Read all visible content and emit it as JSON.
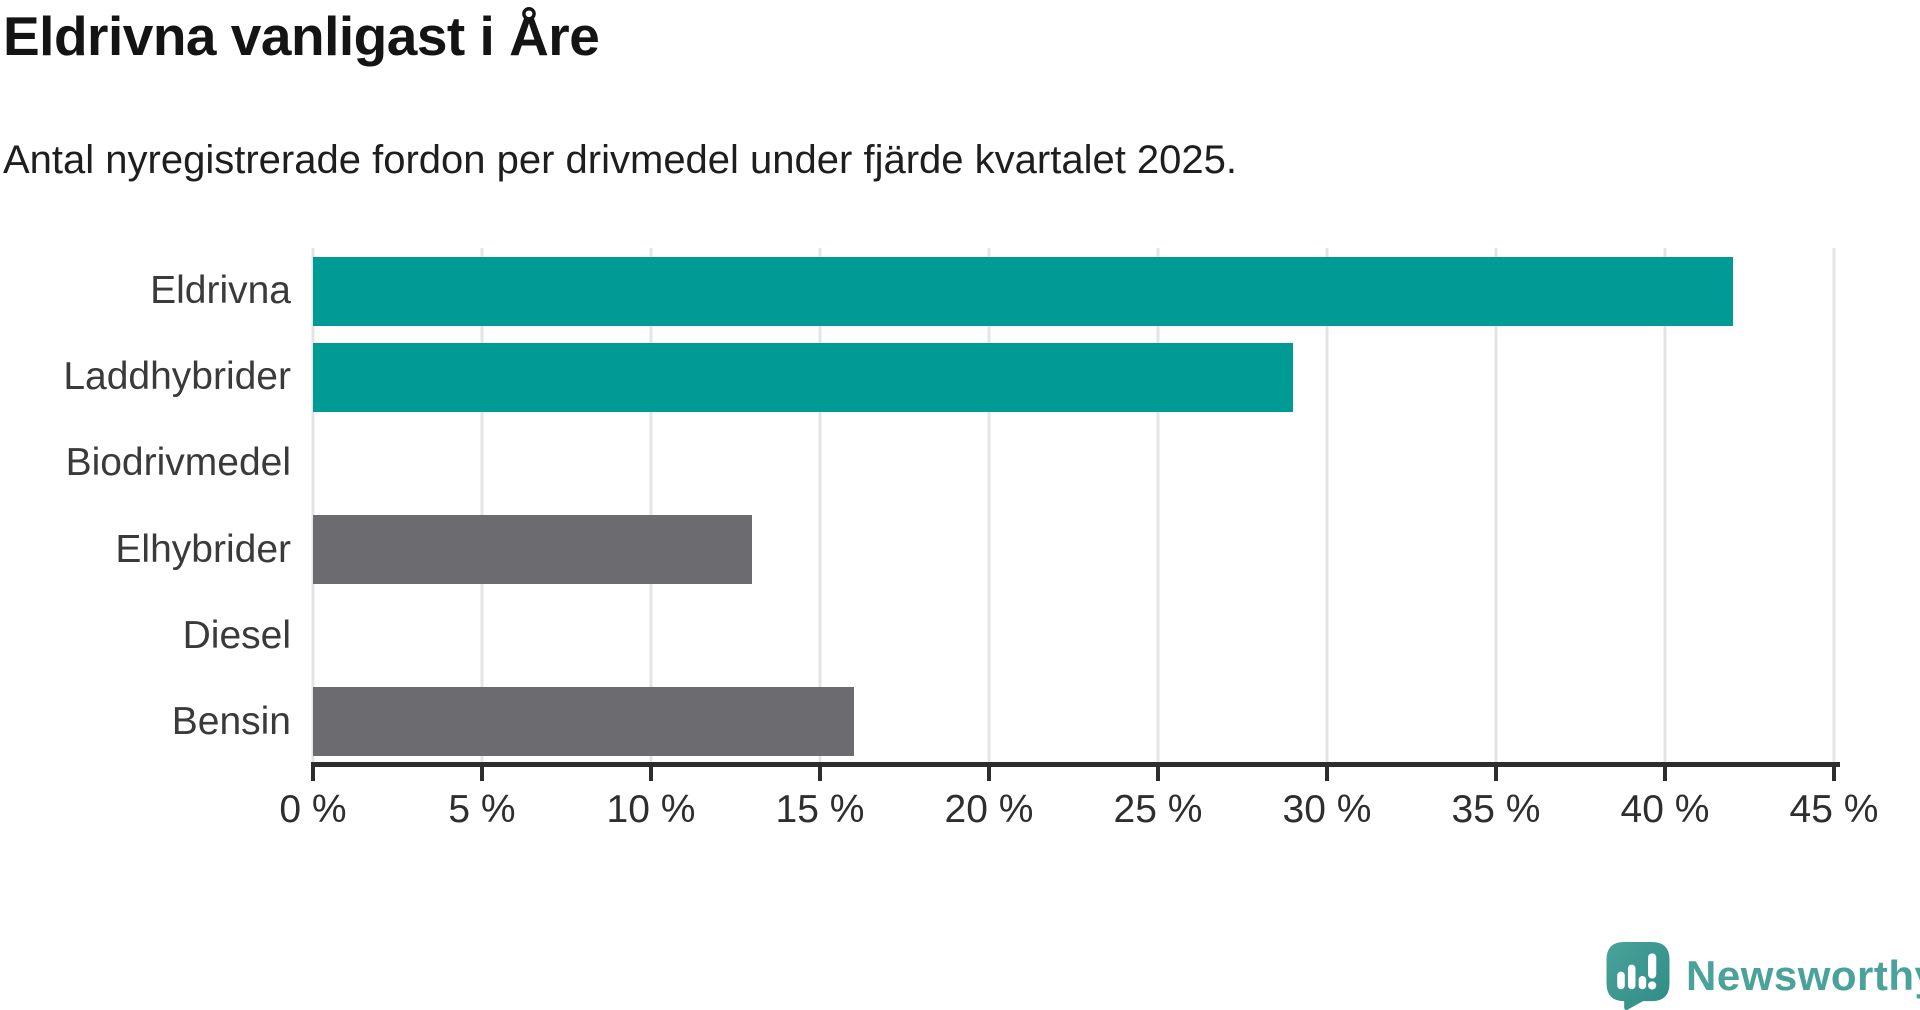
{
  "header": {
    "title": "Eldrivna vanligast i Åre",
    "subtitle": "Antal nyregistrerade fordon per drivmedel under fjärde kvartalet 2025."
  },
  "chart_data": {
    "type": "bar",
    "orientation": "horizontal",
    "title": "Eldrivna vanligast i Åre",
    "subtitle": "Antal nyregistrerade fordon per drivmedel under fjärde kvartalet 2025.",
    "categories": [
      "Eldrivna",
      "Laddhybrider",
      "Biodrivmedel",
      "Elhybrider",
      "Diesel",
      "Bensin"
    ],
    "values": [
      42,
      29,
      0,
      13,
      0,
      16
    ],
    "unit": "%",
    "xlim": [
      0,
      45
    ],
    "x_ticks": [
      0,
      5,
      10,
      15,
      20,
      25,
      30,
      35,
      40,
      45
    ],
    "x_tick_labels": [
      "0 %",
      "5 %",
      "10 %",
      "15 %",
      "20 %",
      "25 %",
      "30 %",
      "35 %",
      "40 %",
      "45 %"
    ],
    "highlight": [
      true,
      true,
      false,
      false,
      false,
      false
    ],
    "accent_color": "#009b94",
    "base_color": "#6c6b70",
    "gridline_color": "#e4e4e4",
    "axis_color": "#2d2d2d",
    "grid": true,
    "legend": "none"
  },
  "footer": {
    "brand": "Newsworthy",
    "brand_color": "#4ba29b",
    "icon_color_top": "#4aa39b",
    "icon_color_bottom": "#2e8b85"
  }
}
